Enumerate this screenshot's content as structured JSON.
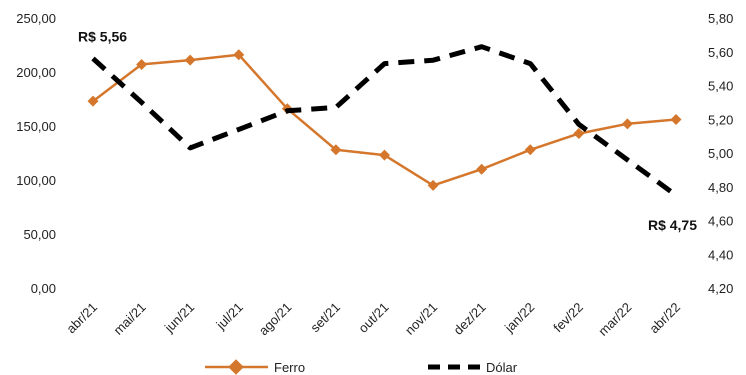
{
  "chart_data": {
    "type": "line",
    "categories": [
      "abr/21",
      "mai/21",
      "jun/21",
      "jul/21",
      "ago/21",
      "set/21",
      "out/21",
      "nov/21",
      "dez/21",
      "jan/22",
      "fev/22",
      "mar/22",
      "abr/22"
    ],
    "series": [
      {
        "name": "Ferro",
        "axis": "left",
        "color": "#D4772C",
        "marker": "diamond",
        "values": [
          173,
          207,
          211,
          216,
          166,
          128,
          123,
          95,
          110,
          128,
          143,
          152,
          156
        ]
      },
      {
        "name": "Dólar",
        "axis": "right",
        "color": "#000000",
        "line_style": "dashed",
        "values": [
          5.56,
          5.3,
          5.03,
          5.14,
          5.25,
          5.27,
          5.53,
          5.55,
          5.63,
          5.53,
          5.17,
          4.96,
          4.75
        ]
      }
    ],
    "y_left": {
      "range": [
        0,
        250
      ],
      "ticks": [
        "0,00",
        "50,00",
        "100,00",
        "150,00",
        "200,00",
        "250,00"
      ]
    },
    "y_right": {
      "range": [
        4.2,
        5.8
      ],
      "ticks": [
        "4,20",
        "4,40",
        "4,60",
        "4,80",
        "5,00",
        "5,20",
        "5,40",
        "5,60",
        "5,80"
      ]
    },
    "annotations": [
      {
        "text": "R$ 5,56",
        "series": "Dólar",
        "category": "abr/21"
      },
      {
        "text": "R$ 4,75",
        "series": "Dólar",
        "category": "abr/22"
      }
    ],
    "legend": {
      "placement": "bottom",
      "items": [
        "Ferro",
        "Dólar"
      ]
    },
    "grid": false,
    "title": "",
    "xlabel": "",
    "ylabel": ""
  }
}
